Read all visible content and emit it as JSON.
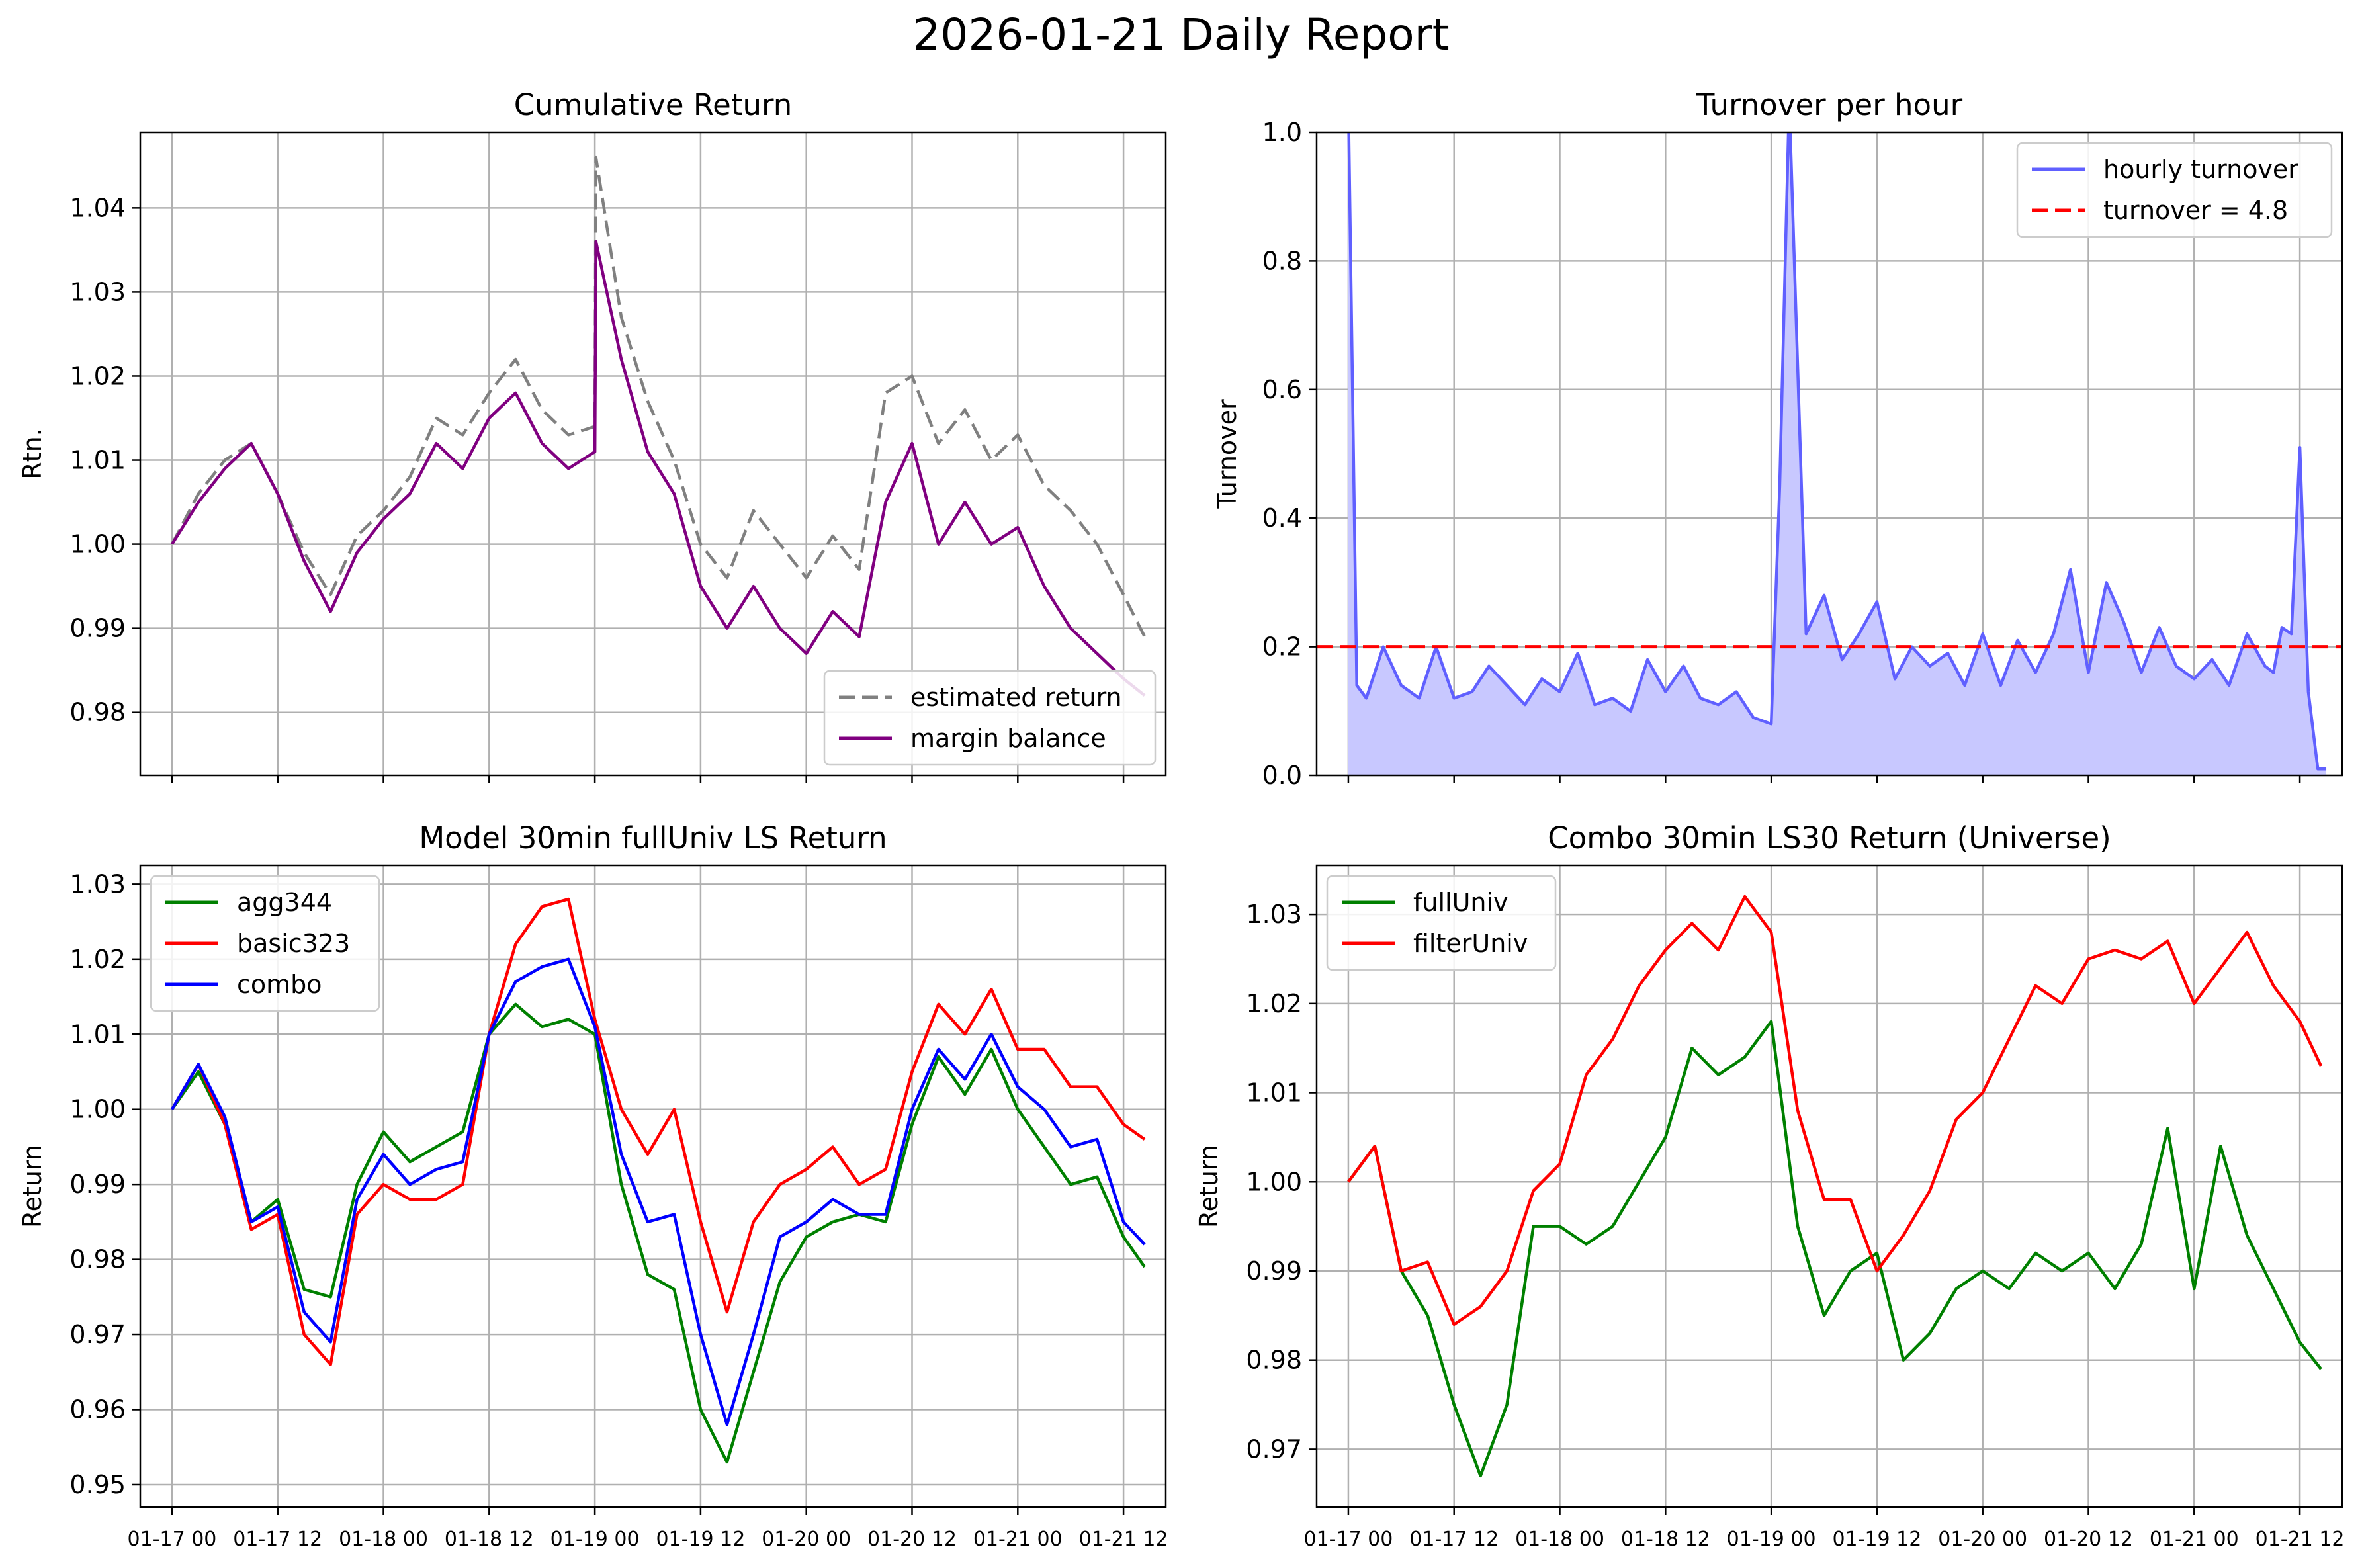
{
  "figure": {
    "title": "2026-01-21 Daily Report"
  },
  "x_tick_labels": [
    "01-17 00",
    "01-17 12",
    "01-18 00",
    "01-18 12",
    "01-19 00",
    "01-19 12",
    "01-20 00",
    "01-20 12",
    "01-21 00",
    "01-21 12"
  ],
  "chart_data": [
    {
      "id": "cumret",
      "type": "line",
      "title": "Cumulative Return",
      "xlabel": "",
      "ylabel": "Rtn.",
      "xlim": [
        -0.3,
        9.4
      ],
      "ylim": [
        0.9725,
        1.049
      ],
      "yticks": [
        0.98,
        0.99,
        1.0,
        1.01,
        1.02,
        1.03,
        1.04
      ],
      "ytick_labels": [
        "0.98",
        "0.99",
        "1.00",
        "1.01",
        "1.02",
        "1.03",
        "1.04"
      ],
      "x_tick_labels_visible": false,
      "legend_position": "lower right",
      "x": [
        0,
        0.25,
        0.5,
        0.75,
        1,
        1.25,
        1.5,
        1.75,
        2,
        2.25,
        2.5,
        2.75,
        3,
        3.25,
        3.5,
        3.75,
        4,
        4.01,
        4.25,
        4.5,
        4.75,
        5,
        5.25,
        5.5,
        5.75,
        6,
        6.25,
        6.5,
        6.75,
        7,
        7.25,
        7.5,
        7.75,
        8,
        8.25,
        8.5,
        8.75,
        9,
        9.2
      ],
      "series": [
        {
          "name": "estimated return",
          "color": "#808080",
          "dash": "dashed",
          "values": [
            1.0,
            1.006,
            1.01,
            1.012,
            1.006,
            0.999,
            0.994,
            1.001,
            1.004,
            1.008,
            1.015,
            1.013,
            1.018,
            1.022,
            1.016,
            1.013,
            1.014,
            1.046,
            1.027,
            1.017,
            1.01,
            1.0,
            0.996,
            1.004,
            1.0,
            0.996,
            1.001,
            0.997,
            1.018,
            1.02,
            1.012,
            1.016,
            1.01,
            1.013,
            1.007,
            1.004,
            1.0,
            0.994,
            0.989
          ]
        },
        {
          "name": "margin balance",
          "color": "#800080",
          "dash": "solid",
          "values": [
            1.0,
            1.005,
            1.009,
            1.012,
            1.006,
            0.998,
            0.992,
            0.999,
            1.003,
            1.006,
            1.012,
            1.009,
            1.015,
            1.018,
            1.012,
            1.009,
            1.011,
            1.036,
            1.022,
            1.011,
            1.006,
            0.995,
            0.99,
            0.995,
            0.99,
            0.987,
            0.992,
            0.989,
            1.005,
            1.012,
            1.0,
            1.005,
            1.0,
            1.002,
            0.995,
            0.99,
            0.987,
            0.984,
            0.982
          ]
        }
      ]
    },
    {
      "id": "turnover",
      "type": "area",
      "title": "Turnover per hour",
      "xlabel": "",
      "ylabel": "Turnover",
      "xlim": [
        -0.3,
        9.4
      ],
      "ylim": [
        0.0,
        1.0
      ],
      "yticks": [
        0.0,
        0.2,
        0.4,
        0.6,
        0.8,
        1.0
      ],
      "ytick_labels": [
        "0.0",
        "0.2",
        "0.4",
        "0.6",
        "0.8",
        "1.0"
      ],
      "x_tick_labels_visible": false,
      "legend_position": "upper right",
      "hline": {
        "name": "turnover = 4.8",
        "y": 0.2,
        "color": "#ff0000",
        "dash": "dashed"
      },
      "series": [
        {
          "name": "hourly turnover",
          "color": "#6060ff",
          "fill": "#c8c8ff",
          "x": [
            0,
            0.08,
            0.17,
            0.33,
            0.5,
            0.67,
            0.83,
            1.0,
            1.17,
            1.33,
            1.5,
            1.67,
            1.83,
            2.0,
            2.17,
            2.33,
            2.5,
            2.67,
            2.83,
            3.0,
            3.17,
            3.33,
            3.5,
            3.67,
            3.83,
            4.0,
            4.08,
            4.17,
            4.33,
            4.5,
            4.67,
            4.83,
            5.0,
            5.17,
            5.33,
            5.5,
            5.67,
            5.83,
            6.0,
            6.17,
            6.33,
            6.5,
            6.67,
            6.83,
            7.0,
            7.17,
            7.33,
            7.5,
            7.67,
            7.83,
            8.0,
            8.17,
            8.33,
            8.5,
            8.67,
            8.75,
            8.83,
            8.92,
            9.0,
            9.08,
            9.17,
            9.25
          ],
          "values": [
            1.05,
            0.14,
            0.12,
            0.2,
            0.14,
            0.12,
            0.2,
            0.12,
            0.13,
            0.17,
            0.14,
            0.11,
            0.15,
            0.13,
            0.19,
            0.11,
            0.12,
            0.1,
            0.18,
            0.13,
            0.17,
            0.12,
            0.11,
            0.13,
            0.09,
            0.08,
            0.45,
            1.05,
            0.22,
            0.28,
            0.18,
            0.22,
            0.27,
            0.15,
            0.2,
            0.17,
            0.19,
            0.14,
            0.22,
            0.14,
            0.21,
            0.16,
            0.22,
            0.32,
            0.16,
            0.3,
            0.24,
            0.16,
            0.23,
            0.17,
            0.15,
            0.18,
            0.14,
            0.22,
            0.17,
            0.16,
            0.23,
            0.22,
            0.51,
            0.13,
            0.01,
            0.01
          ]
        }
      ]
    },
    {
      "id": "model",
      "type": "line",
      "title": "Model 30min fullUniv LS Return",
      "xlabel": "",
      "ylabel": "Return",
      "xlim": [
        -0.3,
        9.4
      ],
      "ylim": [
        0.947,
        1.0325
      ],
      "yticks": [
        0.95,
        0.96,
        0.97,
        0.98,
        0.99,
        1.0,
        1.01,
        1.02,
        1.03
      ],
      "ytick_labels": [
        "0.95",
        "0.96",
        "0.97",
        "0.98",
        "0.99",
        "1.00",
        "1.01",
        "1.02",
        "1.03"
      ],
      "x_tick_labels_visible": true,
      "legend_position": "upper left",
      "x": [
        0,
        0.25,
        0.5,
        0.75,
        1,
        1.25,
        1.5,
        1.75,
        2,
        2.25,
        2.5,
        2.75,
        3,
        3.25,
        3.5,
        3.75,
        4,
        4.25,
        4.5,
        4.75,
        5,
        5.25,
        5.5,
        5.75,
        6,
        6.25,
        6.5,
        6.75,
        7,
        7.25,
        7.5,
        7.75,
        8,
        8.25,
        8.5,
        8.75,
        9,
        9.2
      ],
      "series": [
        {
          "name": "agg344",
          "color": "#008000",
          "values": [
            1.0,
            1.005,
            0.998,
            0.985,
            0.988,
            0.976,
            0.975,
            0.99,
            0.997,
            0.993,
            0.995,
            0.997,
            1.01,
            1.014,
            1.011,
            1.012,
            1.01,
            0.99,
            0.978,
            0.976,
            0.96,
            0.953,
            0.965,
            0.977,
            0.983,
            0.985,
            0.986,
            0.985,
            0.998,
            1.007,
            1.002,
            1.008,
            1.0,
            0.995,
            0.99,
            0.991,
            0.983,
            0.979
          ]
        },
        {
          "name": "basic323",
          "color": "#ff0000",
          "values": [
            1.0,
            1.006,
            0.998,
            0.984,
            0.986,
            0.97,
            0.966,
            0.986,
            0.99,
            0.988,
            0.988,
            0.99,
            1.01,
            1.022,
            1.027,
            1.028,
            1.012,
            1.0,
            0.994,
            1.0,
            0.985,
            0.973,
            0.985,
            0.99,
            0.992,
            0.995,
            0.99,
            0.992,
            1.005,
            1.014,
            1.01,
            1.016,
            1.008,
            1.008,
            1.003,
            1.003,
            0.998,
            0.996
          ]
        },
        {
          "name": "combo",
          "color": "#0000ff",
          "values": [
            1.0,
            1.006,
            0.999,
            0.985,
            0.987,
            0.973,
            0.969,
            0.988,
            0.994,
            0.99,
            0.992,
            0.993,
            1.01,
            1.017,
            1.019,
            1.02,
            1.011,
            0.994,
            0.985,
            0.986,
            0.97,
            0.958,
            0.97,
            0.983,
            0.985,
            0.988,
            0.986,
            0.986,
            1.0,
            1.008,
            1.004,
            1.01,
            1.003,
            1.0,
            0.995,
            0.996,
            0.985,
            0.982
          ]
        }
      ]
    },
    {
      "id": "combo",
      "type": "line",
      "title": "Combo 30min LS30 Return (Universe)",
      "xlabel": "",
      "ylabel": "Return",
      "xlim": [
        -0.3,
        9.4
      ],
      "ylim": [
        0.9635,
        1.0355
      ],
      "yticks": [
        0.97,
        0.98,
        0.99,
        1.0,
        1.01,
        1.02,
        1.03
      ],
      "ytick_labels": [
        "0.97",
        "0.98",
        "0.99",
        "1.00",
        "1.01",
        "1.02",
        "1.03"
      ],
      "x_tick_labels_visible": true,
      "legend_position": "upper left",
      "x": [
        0,
        0.25,
        0.5,
        0.75,
        1,
        1.25,
        1.5,
        1.75,
        2,
        2.25,
        2.5,
        2.75,
        3,
        3.25,
        3.5,
        3.75,
        4,
        4.25,
        4.5,
        4.75,
        5,
        5.25,
        5.5,
        5.75,
        6,
        6.25,
        6.5,
        6.75,
        7,
        7.25,
        7.5,
        7.75,
        8,
        8.25,
        8.5,
        8.75,
        9,
        9.2
      ],
      "series": [
        {
          "name": "fullUniv",
          "color": "#008000",
          "values": [
            1.0,
            1.004,
            0.99,
            0.985,
            0.975,
            0.967,
            0.975,
            0.995,
            0.995,
            0.993,
            0.995,
            1.0,
            1.005,
            1.015,
            1.012,
            1.014,
            1.018,
            0.995,
            0.985,
            0.99,
            0.992,
            0.98,
            0.983,
            0.988,
            0.99,
            0.988,
            0.992,
            0.99,
            0.992,
            0.988,
            0.993,
            1.006,
            0.988,
            1.004,
            0.994,
            0.988,
            0.982,
            0.979
          ]
        },
        {
          "name": "filterUniv",
          "color": "#ff0000",
          "values": [
            1.0,
            1.004,
            0.99,
            0.991,
            0.984,
            0.986,
            0.99,
            0.999,
            1.002,
            1.012,
            1.016,
            1.022,
            1.026,
            1.029,
            1.026,
            1.032,
            1.028,
            1.008,
            0.998,
            0.998,
            0.99,
            0.994,
            0.999,
            1.007,
            1.01,
            1.016,
            1.022,
            1.02,
            1.025,
            1.026,
            1.025,
            1.027,
            1.02,
            1.024,
            1.028,
            1.022,
            1.018,
            1.013
          ]
        }
      ]
    }
  ]
}
